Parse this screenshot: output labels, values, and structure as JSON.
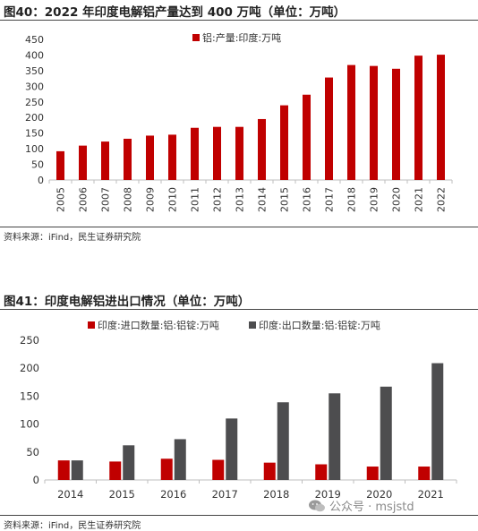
{
  "figure1": {
    "title": "图40：2022 年印度电解铝产量达到 400 万吨（单位：万吨）",
    "source": "资料来源：iFind，民生证券研究院"
  },
  "figure2": {
    "title": "图41：印度电解铝进出口情况（单位：万吨）",
    "source": "资料来源：iFind，民生证券研究院"
  },
  "watermark": {
    "text": "公众号 · msjstd",
    "icon": "wechat-icon"
  },
  "colors": {
    "red": "#c00000",
    "gray": "#4d4d4f",
    "axis": "#bfbfbf",
    "grid": "#d9d9d9"
  },
  "chart_data": [
    {
      "type": "bar",
      "title": "",
      "categories": [
        "2005",
        "2006",
        "2007",
        "2008",
        "2009",
        "2010",
        "2011",
        "2012",
        "2013",
        "2014",
        "2015",
        "2016",
        "2017",
        "2018",
        "2019",
        "2020",
        "2021",
        "2022"
      ],
      "series": [
        {
          "name": "铝:产量:印度:万吨",
          "color": "#c00000",
          "values": [
            92,
            110,
            123,
            132,
            142,
            145,
            167,
            170,
            170,
            195,
            239,
            273,
            328,
            368,
            365,
            356,
            398,
            401
          ]
        }
      ],
      "ylim": [
        0,
        450
      ],
      "yticks": [
        0,
        50,
        100,
        150,
        200,
        250,
        300,
        350,
        400,
        450
      ],
      "grid": false,
      "legend_position": "top-center"
    },
    {
      "type": "bar",
      "title": "",
      "categories": [
        "2014",
        "2015",
        "2016",
        "2017",
        "2018",
        "2019",
        "2020",
        "2021"
      ],
      "series": [
        {
          "name": "印度:进口数量:铝:铝锭:万吨",
          "color": "#c00000",
          "values": [
            35,
            33,
            38,
            36,
            31,
            28,
            24,
            24
          ]
        },
        {
          "name": "印度:出口数量:铝:铝锭:万吨",
          "color": "#4d4d4f",
          "values": [
            35,
            62,
            73,
            110,
            139,
            155,
            167,
            209
          ]
        }
      ],
      "ylim": [
        0,
        250
      ],
      "yticks": [
        0,
        50,
        100,
        150,
        200,
        250
      ],
      "grid": false,
      "legend_position": "top-center"
    }
  ]
}
